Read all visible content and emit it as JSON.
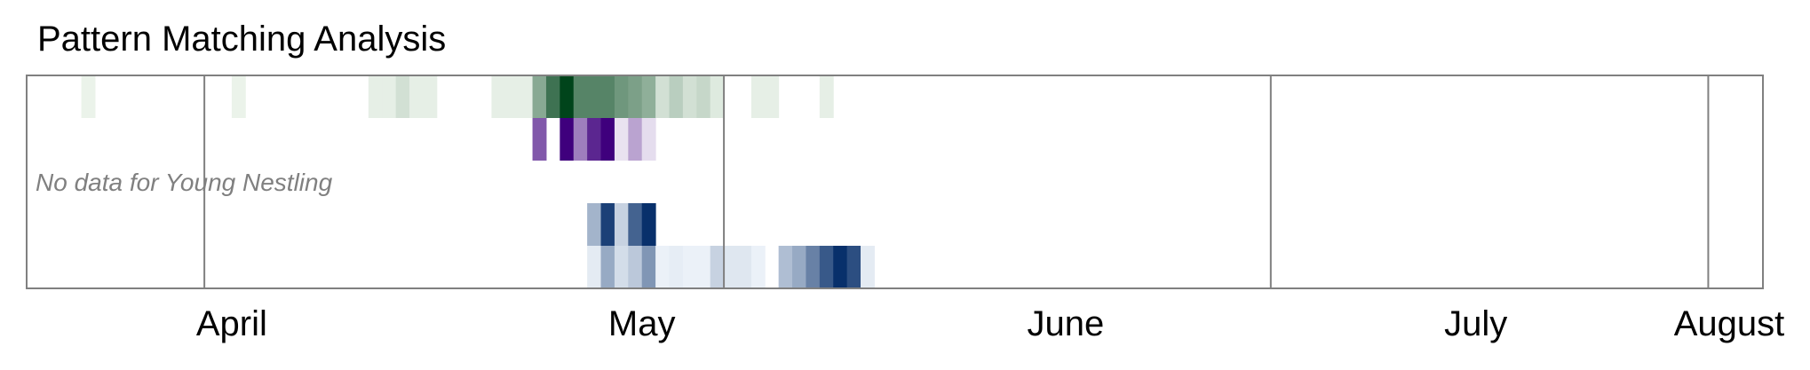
{
  "chart_data": {
    "type": "heatmap",
    "title": "Pattern Matching Analysis",
    "x_axis": {
      "type": "date",
      "range": [
        "2024-03-31",
        "2024-08-05"
      ],
      "tick_labels": [
        "April",
        "May",
        "June",
        "July",
        "August"
      ]
    },
    "vertical_markers": [
      "2024-04-13",
      "2024-05-21",
      "2024-06-30",
      "2024-08-01"
    ],
    "frame_color": "#808080",
    "rows": [
      {
        "colormap": "green",
        "colors": [
          "#f7fcf5",
          "#00441b"
        ],
        "cells": [
          {
            "date": "2024-04-04",
            "value": 0.05
          },
          {
            "date": "2024-04-15",
            "value": 0.05
          },
          {
            "date": "2024-04-25",
            "value": 0.07
          },
          {
            "date": "2024-04-26",
            "value": 0.07
          },
          {
            "date": "2024-04-27",
            "value": 0.15
          },
          {
            "date": "2024-04-28",
            "value": 0.07
          },
          {
            "date": "2024-04-29",
            "value": 0.07
          },
          {
            "date": "2024-05-04",
            "value": 0.07
          },
          {
            "date": "2024-05-05",
            "value": 0.07
          },
          {
            "date": "2024-05-06",
            "value": 0.07
          },
          {
            "date": "2024-05-07",
            "value": 0.45
          },
          {
            "date": "2024-05-08",
            "value": 0.75
          },
          {
            "date": "2024-05-09",
            "value": 1.0
          },
          {
            "date": "2024-05-10",
            "value": 0.65
          },
          {
            "date": "2024-05-11",
            "value": 0.65
          },
          {
            "date": "2024-05-12",
            "value": 0.65
          },
          {
            "date": "2024-05-13",
            "value": 0.55
          },
          {
            "date": "2024-05-14",
            "value": 0.5
          },
          {
            "date": "2024-05-15",
            "value": 0.42
          },
          {
            "date": "2024-05-16",
            "value": 0.15
          },
          {
            "date": "2024-05-17",
            "value": 0.25
          },
          {
            "date": "2024-05-18",
            "value": 0.15
          },
          {
            "date": "2024-05-19",
            "value": 0.2
          },
          {
            "date": "2024-05-20",
            "value": 0.1
          },
          {
            "date": "2024-05-23",
            "value": 0.07
          },
          {
            "date": "2024-05-24",
            "value": 0.07
          },
          {
            "date": "2024-05-28",
            "value": 0.07
          }
        ]
      },
      {
        "colormap": "purple",
        "colors": [
          "#fcfbfd",
          "#3f007d"
        ],
        "cells": [
          {
            "date": "2024-05-07",
            "value": 0.65
          },
          {
            "date": "2024-05-09",
            "value": 1.0
          },
          {
            "date": "2024-05-10",
            "value": 0.5
          },
          {
            "date": "2024-05-11",
            "value": 0.85
          },
          {
            "date": "2024-05-12",
            "value": 1.0
          },
          {
            "date": "2024-05-13",
            "value": 0.1
          },
          {
            "date": "2024-05-14",
            "value": 0.35
          },
          {
            "date": "2024-05-15",
            "value": 0.12
          }
        ]
      },
      {
        "colormap": "none",
        "no_data_label": "No data for Young Nestling",
        "cells": []
      },
      {
        "colormap": "blue",
        "colors": [
          "#f7fbff",
          "#08306b"
        ],
        "cells": [
          {
            "date": "2024-05-11",
            "value": 0.35
          },
          {
            "date": "2024-05-12",
            "value": 0.92
          },
          {
            "date": "2024-05-13",
            "value": 0.2
          },
          {
            "date": "2024-05-14",
            "value": 0.75
          },
          {
            "date": "2024-05-15",
            "value": 1.0
          }
        ]
      },
      {
        "colormap": "blue",
        "colors": [
          "#f7fbff",
          "#08306b"
        ],
        "cells": [
          {
            "date": "2024-05-11",
            "value": 0.08
          },
          {
            "date": "2024-05-12",
            "value": 0.4
          },
          {
            "date": "2024-05-13",
            "value": 0.15
          },
          {
            "date": "2024-05-14",
            "value": 0.25
          },
          {
            "date": "2024-05-15",
            "value": 0.5
          },
          {
            "date": "2024-05-16",
            "value": 0.05
          },
          {
            "date": "2024-05-17",
            "value": 0.07
          },
          {
            "date": "2024-05-18",
            "value": 0.05
          },
          {
            "date": "2024-05-19",
            "value": 0.05
          },
          {
            "date": "2024-05-20",
            "value": 0.2
          },
          {
            "date": "2024-05-21",
            "value": 0.1
          },
          {
            "date": "2024-05-22",
            "value": 0.1
          },
          {
            "date": "2024-05-23",
            "value": 0.05
          },
          {
            "date": "2024-05-25",
            "value": 0.3
          },
          {
            "date": "2024-05-26",
            "value": 0.4
          },
          {
            "date": "2024-05-27",
            "value": 0.6
          },
          {
            "date": "2024-05-28",
            "value": 0.8
          },
          {
            "date": "2024-05-29",
            "value": 1.0
          },
          {
            "date": "2024-05-30",
            "value": 0.85
          },
          {
            "date": "2024-05-31",
            "value": 0.08
          }
        ]
      }
    ]
  }
}
